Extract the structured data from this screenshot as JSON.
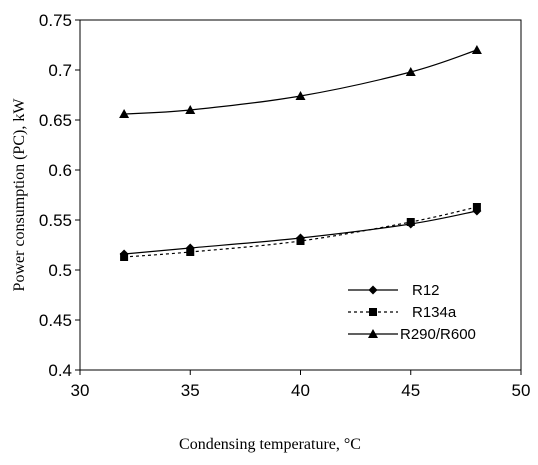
{
  "chart_data": {
    "type": "line",
    "title": "",
    "xlabel": "Condensing temperature, °C",
    "ylabel": "Power consumption (PC), kW",
    "xlim": [
      30,
      50
    ],
    "ylim": [
      0.4,
      0.75
    ],
    "xticks": [
      30,
      35,
      40,
      45,
      50
    ],
    "xtick_labels": [
      "30",
      "35",
      "40",
      "45",
      "50"
    ],
    "yticks": [
      0.4,
      0.45,
      0.5,
      0.55,
      0.6,
      0.65,
      0.7,
      0.75
    ],
    "ytick_labels": [
      "0.4",
      "0.45",
      "0.5",
      "0.55",
      "0.6",
      "0.65",
      "0.7",
      "0.75"
    ],
    "grid": false,
    "legend_position": "inside, lower-right",
    "series": [
      {
        "name": "R12",
        "marker": "diamond",
        "line": "solid",
        "color": "#000000",
        "x": [
          32,
          35,
          40,
          45,
          48
        ],
        "y": [
          0.516,
          0.522,
          0.532,
          0.546,
          0.559
        ]
      },
      {
        "name": "R134a",
        "marker": "square",
        "line": "dashed",
        "color": "#000000",
        "x": [
          32,
          35,
          40,
          45,
          48
        ],
        "y": [
          0.513,
          0.518,
          0.529,
          0.548,
          0.563
        ]
      },
      {
        "name": "R290/R600",
        "marker": "triangle",
        "line": "solid",
        "color": "#000000",
        "x": [
          32,
          35,
          40,
          45,
          48
        ],
        "y": [
          0.656,
          0.66,
          0.674,
          0.698,
          0.72
        ]
      }
    ]
  }
}
